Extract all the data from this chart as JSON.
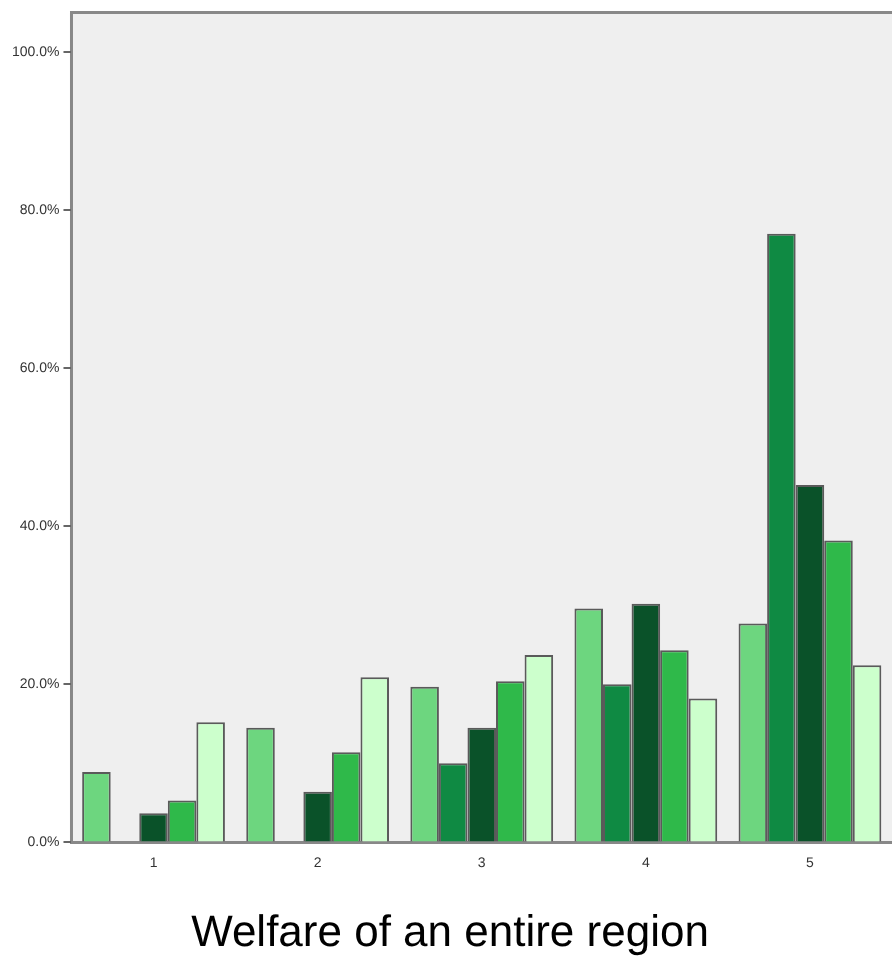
{
  "chart_data": {
    "type": "bar",
    "title": "Welfare of an entire region",
    "categories": [
      "1",
      "2",
      "3",
      "4",
      "5"
    ],
    "series": [
      {
        "color": "#6dd67f",
        "values": [
          8.9,
          14.5,
          19.7,
          29.6,
          27.7
        ]
      },
      {
        "color": "#0f8a43",
        "values": [
          0,
          0,
          10,
          20,
          77
        ]
      },
      {
        "color": "#0a5229",
        "values": [
          3.7,
          6.4,
          14.5,
          30.2,
          45.2
        ]
      },
      {
        "color": "#2fb94a",
        "values": [
          5.3,
          11.4,
          20.4,
          24.3,
          38.2
        ]
      },
      {
        "color": "#ccffcc",
        "values": [
          15.2,
          20.9,
          23.7,
          18.2,
          22.4
        ]
      }
    ],
    "ylim": [
      0,
      105
    ],
    "yticks": [
      {
        "value": 0,
        "label": "0.0%"
      },
      {
        "value": 20,
        "label": "20.0%"
      },
      {
        "value": 40,
        "label": "40.0%"
      },
      {
        "value": 60,
        "label": "60.0%"
      },
      {
        "value": 80,
        "label": "80.0%"
      },
      {
        "value": 100,
        "label": "100.0%"
      }
    ],
    "grid": false,
    "legend": false
  }
}
